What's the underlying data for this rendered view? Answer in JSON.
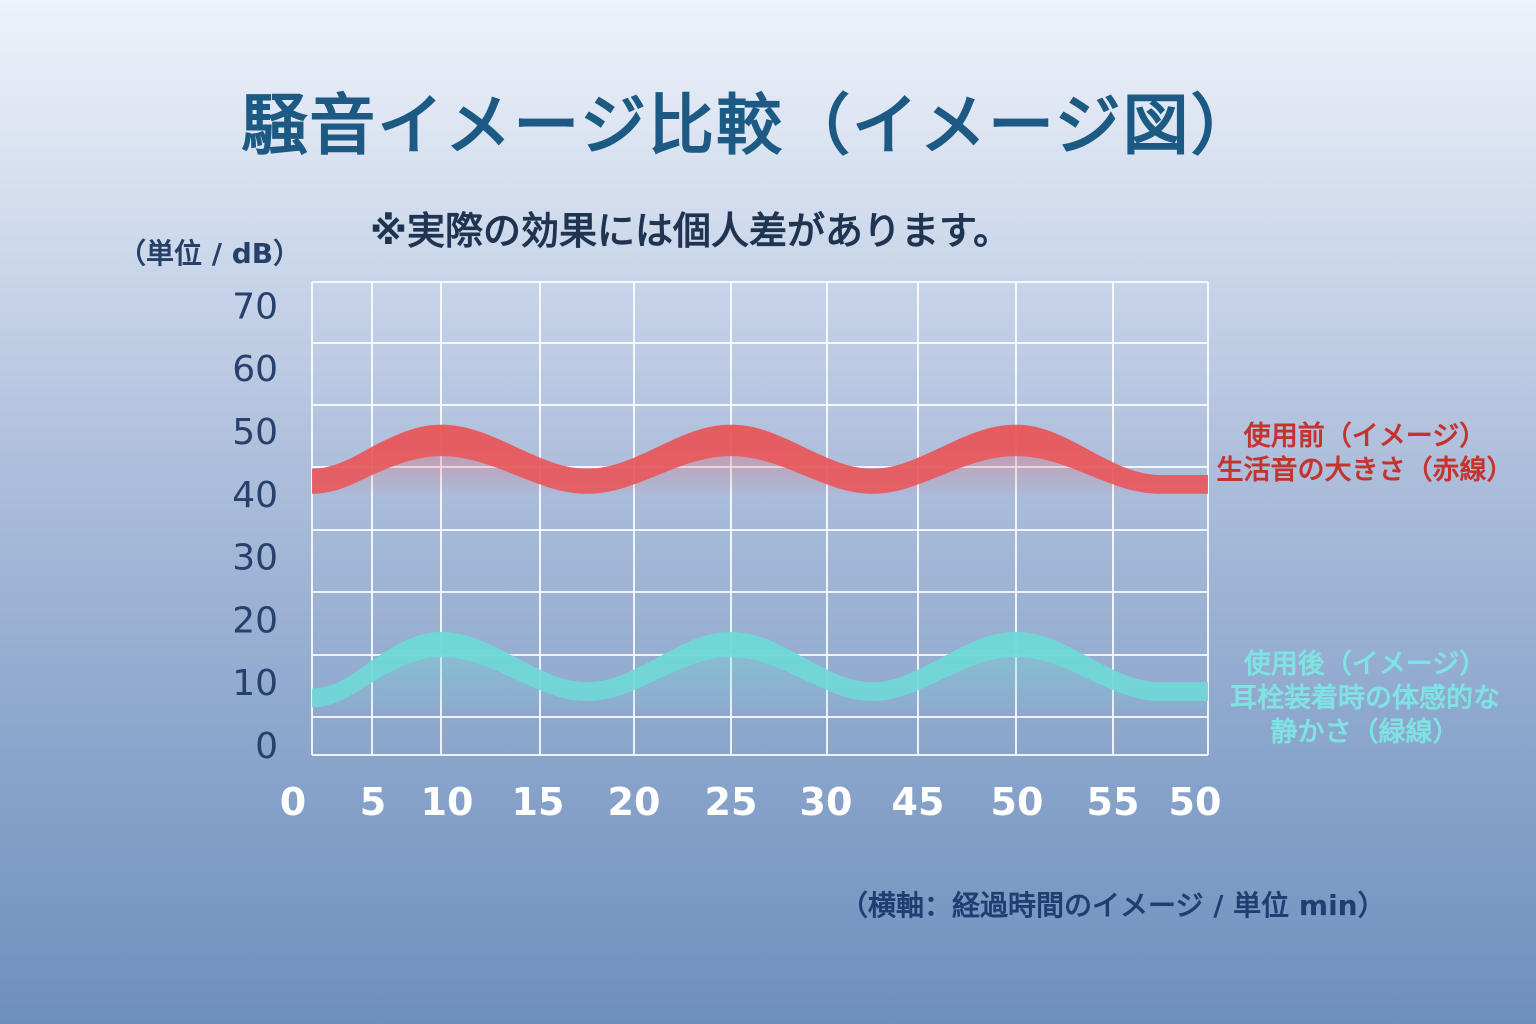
{
  "title": "騒音イメージ比較（イメージ図）",
  "subtitle": "※実際の効果には個人差があります。",
  "chart_data": {
    "type": "area",
    "ylabel": "（単位 / dB）",
    "xlabel": "（横軸：経過時間のイメージ / 単位 min）",
    "ylim": [
      0,
      70
    ],
    "yticks": [
      "0",
      "10",
      "20",
      "30",
      "40",
      "50",
      "60",
      "70"
    ],
    "categories": [
      "0",
      "5",
      "10",
      "15",
      "20",
      "25",
      "30",
      "45",
      "50",
      "55",
      "50"
    ],
    "grid": true,
    "series": [
      {
        "name": "使用前（イメージ）生活音の大きさ（赤線）",
        "legend_lines": [
          "使用前（イメージ）",
          "生活音の大きさ（赤線）"
        ],
        "color": "#e8565a",
        "points_category_index": [
          0,
          2,
          3.5,
          5,
          6.5,
          8,
          9.5,
          10
        ],
        "upper": [
          44,
          51,
          44,
          51,
          44,
          51,
          43,
          43
        ],
        "lower": [
          40,
          46,
          40,
          46,
          40,
          46,
          40,
          40
        ]
      },
      {
        "name": "使用後（イメージ）耳栓装着時の体感的な静かさ（緑線）",
        "legend_lines": [
          "使用後（イメージ）",
          "耳栓装着時の体感的な",
          "静かさ（緑線）"
        ],
        "color": "#6fd8d6",
        "points_category_index": [
          0,
          2,
          3.5,
          5,
          6.5,
          8,
          9.5,
          10
        ],
        "upper": [
          9,
          18,
          10,
          18,
          10,
          18,
          10,
          10
        ],
        "lower": [
          6,
          14,
          7,
          14,
          7,
          14,
          7,
          7
        ]
      }
    ]
  }
}
